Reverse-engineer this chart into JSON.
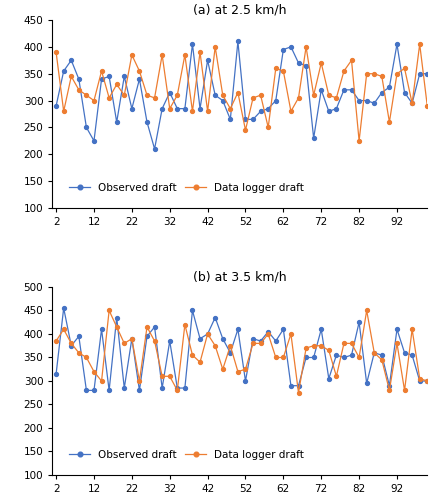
{
  "title_a": "(a) at 2.5 km/h",
  "title_b": "(b) at 3.5 km/h",
  "x": [
    2,
    4,
    6,
    8,
    10,
    12,
    14,
    16,
    18,
    20,
    22,
    24,
    26,
    28,
    30,
    32,
    34,
    36,
    38,
    40,
    42,
    44,
    46,
    48,
    50,
    52,
    54,
    56,
    58,
    60,
    62,
    64,
    66,
    68,
    70,
    72,
    74,
    76,
    78,
    80,
    82,
    84,
    86,
    88,
    90,
    92,
    94,
    96,
    98,
    100
  ],
  "obs_a": [
    290,
    355,
    375,
    340,
    250,
    225,
    340,
    345,
    260,
    345,
    285,
    340,
    260,
    210,
    285,
    315,
    285,
    285,
    405,
    285,
    375,
    310,
    300,
    265,
    410,
    265,
    265,
    280,
    285,
    300,
    395,
    400,
    370,
    365,
    230,
    320,
    280,
    285,
    320,
    320,
    300,
    300,
    295,
    315,
    325,
    405,
    315,
    295,
    350,
    350
  ],
  "dl_a": [
    390,
    280,
    345,
    320,
    310,
    300,
    355,
    305,
    330,
    310,
    385,
    355,
    310,
    305,
    385,
    285,
    310,
    385,
    280,
    390,
    280,
    400,
    310,
    285,
    315,
    245,
    305,
    310,
    250,
    360,
    355,
    280,
    305,
    400,
    310,
    370,
    310,
    305,
    355,
    375,
    225,
    350,
    350,
    345,
    260,
    350,
    360,
    295,
    405,
    290
  ],
  "obs_b": [
    315,
    455,
    375,
    395,
    280,
    280,
    410,
    280,
    435,
    285,
    390,
    280,
    395,
    415,
    285,
    385,
    285,
    285,
    450,
    390,
    400,
    435,
    390,
    360,
    410,
    300,
    390,
    385,
    405,
    385,
    410,
    290,
    290,
    350,
    350,
    410,
    305,
    355,
    350,
    355,
    425,
    295,
    360,
    355,
    290,
    410,
    360,
    355,
    300,
    300
  ],
  "dl_b": [
    385,
    410,
    380,
    360,
    350,
    320,
    300,
    450,
    415,
    380,
    390,
    300,
    415,
    385,
    310,
    310,
    280,
    420,
    355,
    340,
    400,
    375,
    325,
    375,
    320,
    325,
    380,
    380,
    400,
    350,
    350,
    400,
    275,
    370,
    375,
    375,
    365,
    310,
    380,
    380,
    350,
    450,
    360,
    345,
    280,
    380,
    280,
    410,
    305,
    300
  ],
  "color_obs": "#4472C4",
  "color_dl": "#ED7D31",
  "legend_obs": "Observed draft",
  "legend_dl": "Data logger draft",
  "ylim_a": [
    100,
    450
  ],
  "ylim_b": [
    100,
    500
  ],
  "yticks_a": [
    100,
    150,
    200,
    250,
    300,
    350,
    400,
    450
  ],
  "yticks_b": [
    100,
    150,
    200,
    250,
    300,
    350,
    400,
    450,
    500
  ],
  "xticks": [
    2,
    12,
    22,
    32,
    42,
    52,
    62,
    72,
    82,
    92
  ]
}
